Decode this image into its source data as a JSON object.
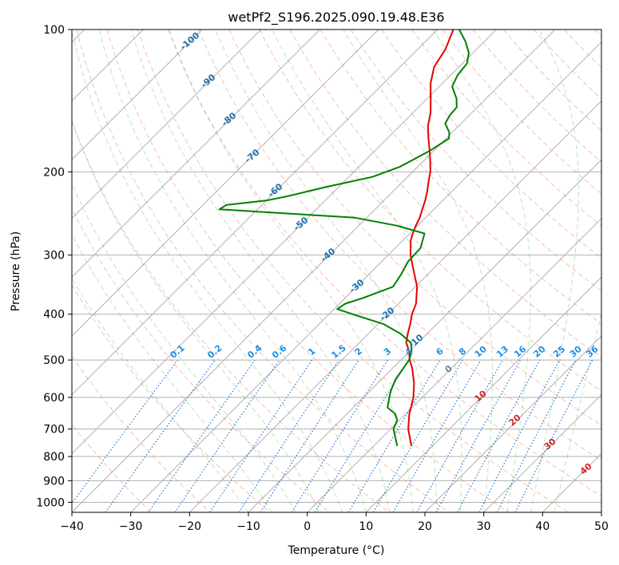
{
  "chart_data": {
    "type": "skew-t log-p",
    "title": "wetPf2_S196.2025.090.19.48.E36",
    "xlabel": "Temperature (°C)",
    "ylabel": "Pressure (hPa)",
    "xlim": [
      -40,
      50
    ],
    "ylim_hpa": [
      1050,
      100
    ],
    "y_scale": "log",
    "grid": true,
    "x_ticks": [
      -40,
      -30,
      -20,
      -10,
      0,
      10,
      20,
      30,
      40,
      50
    ],
    "y_ticks": [
      100,
      200,
      300,
      400,
      500,
      600,
      700,
      800,
      900,
      1000
    ],
    "isotherm_step": 10,
    "dry_adiabat_labels": [
      -100,
      -90,
      -80,
      -70,
      -60,
      -50,
      -40,
      -30,
      -20,
      -10
    ],
    "moist_adiabat_labels": [
      0,
      10,
      20,
      30,
      40
    ],
    "mixing_ratio_labels": [
      "0.1",
      "0.2",
      "0.4",
      "0.6",
      "1",
      "1.5",
      "2",
      "3",
      "4",
      "6",
      "8",
      "10",
      "13",
      "16",
      "20",
      "25",
      "30",
      "36"
    ],
    "mixing_ratio_values": [
      0.1,
      0.2,
      0.4,
      0.6,
      1,
      1.5,
      2,
      3,
      4,
      6,
      8,
      10,
      13,
      16,
      20,
      25,
      30,
      36
    ],
    "series": [
      {
        "name": "Temperature",
        "color": "#e50000",
        "points": [
          [
            760,
            6.4
          ],
          [
            700,
            3.0
          ],
          [
            650,
            0.6
          ],
          [
            600,
            -1.5
          ],
          [
            560,
            -3.8
          ],
          [
            520,
            -6.7
          ],
          [
            500,
            -8.5
          ],
          [
            480,
            -10.0
          ],
          [
            460,
            -12.0
          ],
          [
            440,
            -13.3
          ],
          [
            420,
            -14.5
          ],
          [
            400,
            -15.9
          ],
          [
            380,
            -17.0
          ],
          [
            350,
            -19.7
          ],
          [
            320,
            -23.5
          ],
          [
            300,
            -26.2
          ],
          [
            280,
            -28.6
          ],
          [
            270,
            -29.5
          ],
          [
            260,
            -30.3
          ],
          [
            250,
            -31.0
          ],
          [
            240,
            -32.0
          ],
          [
            230,
            -33.0
          ],
          [
            220,
            -34.2
          ],
          [
            210,
            -35.6
          ],
          [
            200,
            -37.0
          ],
          [
            190,
            -38.8
          ],
          [
            180,
            -40.8
          ],
          [
            170,
            -43.0
          ],
          [
            160,
            -45.2
          ],
          [
            150,
            -47.0
          ],
          [
            140,
            -49.4
          ],
          [
            130,
            -52.0
          ],
          [
            120,
            -54.2
          ],
          [
            110,
            -55.3
          ],
          [
            100,
            -57.3
          ]
        ]
      },
      {
        "name": "Dewpoint",
        "color": "#008000",
        "points": [
          [
            760,
            4.0
          ],
          [
            700,
            0.5
          ],
          [
            670,
            -0.4
          ],
          [
            650,
            -1.8
          ],
          [
            630,
            -4.2
          ],
          [
            600,
            -5.6
          ],
          [
            580,
            -6.5
          ],
          [
            550,
            -7.6
          ],
          [
            520,
            -8.2
          ],
          [
            500,
            -8.6
          ],
          [
            480,
            -9.6
          ],
          [
            460,
            -11.2
          ],
          [
            440,
            -14.5
          ],
          [
            420,
            -19.0
          ],
          [
            400,
            -26.0
          ],
          [
            390,
            -29.5
          ],
          [
            380,
            -29.0
          ],
          [
            370,
            -27.0
          ],
          [
            350,
            -23.8
          ],
          [
            330,
            -24.5
          ],
          [
            310,
            -25.5
          ],
          [
            290,
            -25.7
          ],
          [
            270,
            -27.5
          ],
          [
            260,
            -33.5
          ],
          [
            250,
            -42.0
          ],
          [
            245,
            -54.0
          ],
          [
            240,
            -66.5
          ],
          [
            235,
            -66.0
          ],
          [
            230,
            -60.0
          ],
          [
            225,
            -57.0
          ],
          [
            215,
            -52.0
          ],
          [
            205,
            -46.0
          ],
          [
            195,
            -43.0
          ],
          [
            180,
            -40.6
          ],
          [
            170,
            -39.5
          ],
          [
            165,
            -40.5
          ],
          [
            158,
            -42.7
          ],
          [
            152,
            -43.3
          ],
          [
            146,
            -43.5
          ],
          [
            140,
            -45.0
          ],
          [
            132,
            -47.8
          ],
          [
            125,
            -48.8
          ],
          [
            118,
            -49.2
          ],
          [
            112,
            -50.7
          ],
          [
            106,
            -53.2
          ],
          [
            100,
            -56.3
          ]
        ]
      }
    ]
  }
}
